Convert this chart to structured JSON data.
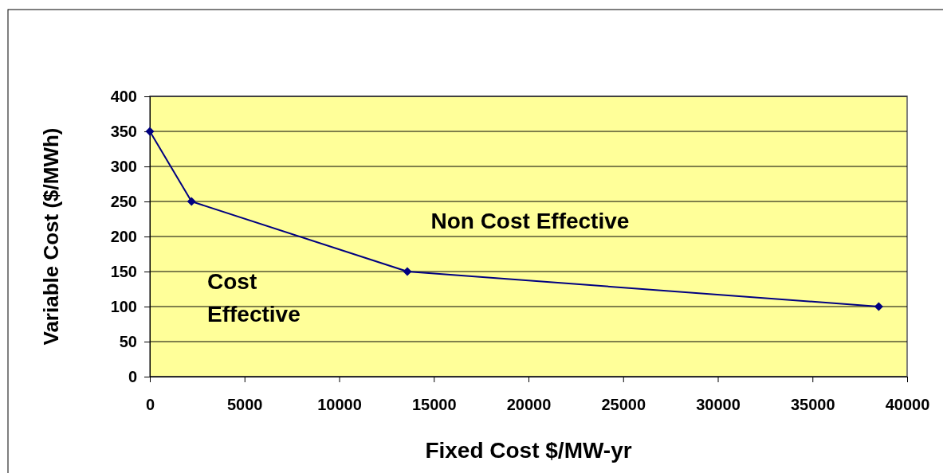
{
  "chart_data": {
    "type": "line",
    "xlabel": "Fixed Cost $/MW-yr",
    "ylabel": "Variable Cost ($/MWh)",
    "x": [
      0,
      2200,
      13600,
      38500
    ],
    "series": [
      {
        "color": "#000080",
        "values": [
          350,
          250,
          150,
          100
        ]
      }
    ],
    "xlim": [
      0,
      40000
    ],
    "xticks": [
      0,
      5000,
      10000,
      15000,
      20000,
      25000,
      30000,
      35000,
      40000
    ],
    "ylim": [
      0,
      400
    ],
    "yticks": [
      0,
      50,
      100,
      150,
      200,
      250,
      300,
      350,
      400
    ],
    "grid": "y",
    "marker": "diamond",
    "line_style": "solid",
    "annotations": [
      "Non Cost Effective",
      "Cost Effective"
    ]
  }
}
